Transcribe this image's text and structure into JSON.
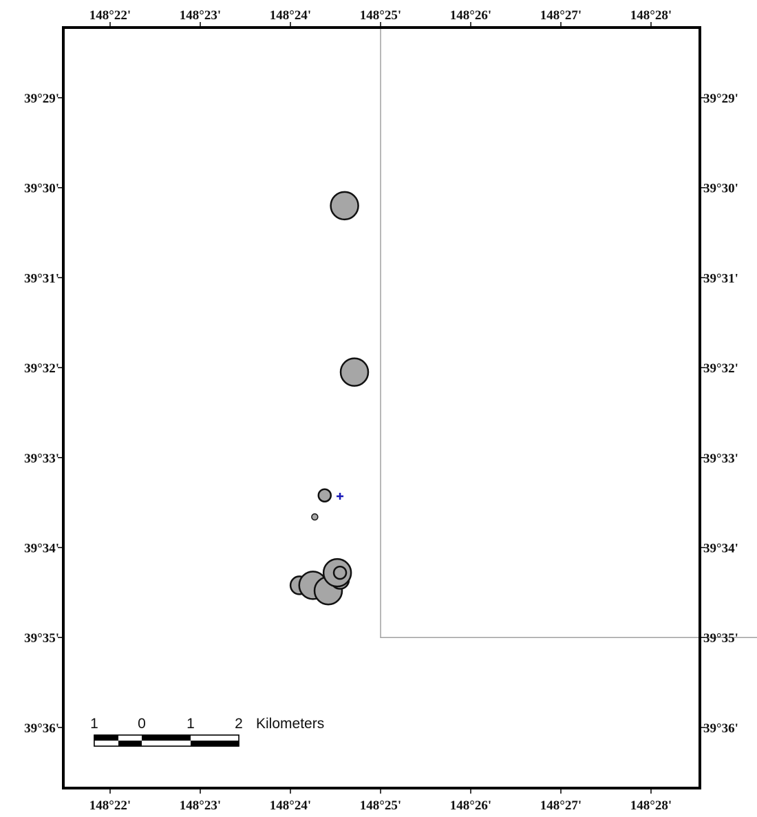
{
  "map": {
    "top_lon_labels": [
      "148°22'",
      "148°23'",
      "148°24'",
      "148°25'",
      "148°26'",
      "148°27'",
      "148°28'"
    ],
    "bottom_lon_labels": [
      "148°22'",
      "148°23'",
      "148°24'",
      "148°25'",
      "148°26'",
      "148°27'",
      "148°28'"
    ],
    "left_lat_labels": [
      "39°29'",
      "39°30'",
      "39°31'",
      "39°32'",
      "39°33'",
      "39°34'",
      "39°35'",
      "39°36'"
    ],
    "right_lat_labels": [
      "39°29'",
      "39°30'",
      "39°31'",
      "39°32'",
      "39°33'",
      "39°34'",
      "39°35'",
      "39°36'"
    ],
    "longitudes_min": [
      22,
      23,
      24,
      25,
      26,
      27,
      28
    ],
    "latitudes_min": [
      29,
      30,
      31,
      32,
      33,
      34,
      35,
      36
    ],
    "boundary_line": {
      "color": "#a0a0a0",
      "vertical_lon_min": 25,
      "vertical_lat_from_min": 27.8,
      "vertical_lat_to_min": 35,
      "horizontal_lat_min": 35,
      "horizontal_lon_to_min": 28.5
    },
    "events": [
      {
        "lon_min": 24.6,
        "lat_min": 30.2,
        "size": "large"
      },
      {
        "lon_min": 24.71,
        "lat_min": 32.05,
        "size": "large"
      },
      {
        "lon_min": 24.38,
        "lat_min": 33.42,
        "size": "small"
      },
      {
        "lon_min": 24.27,
        "lat_min": 33.66,
        "size": "tiny"
      },
      {
        "lon_min": 24.1,
        "lat_min": 34.42,
        "size": "medium"
      },
      {
        "lon_min": 24.25,
        "lat_min": 34.42,
        "size": "large"
      },
      {
        "lon_min": 24.42,
        "lat_min": 34.48,
        "size": "large"
      },
      {
        "lon_min": 24.55,
        "lat_min": 34.36,
        "size": "medium"
      },
      {
        "lon_min": 24.52,
        "lat_min": 34.28,
        "size": "large"
      },
      {
        "lon_min": 24.55,
        "lat_min": 34.28,
        "size": "small"
      }
    ],
    "event_fill": "#a6a6a6",
    "event_stroke": "#111111",
    "station": {
      "lon_min": 24.55,
      "lat_min": 33.43,
      "color": "#1a1ab8"
    },
    "scale_bar": {
      "labels": [
        "1",
        "0",
        "1",
        "2"
      ],
      "unit": "Kilometers"
    }
  }
}
